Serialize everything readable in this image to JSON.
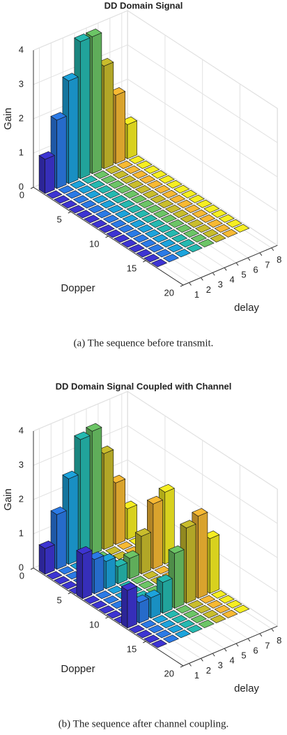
{
  "chart_data": [
    {
      "type": "bar3d",
      "title": "DD Domain Signal",
      "caption": "(a)  The sequence before transmit.",
      "xlabel": "Dopper",
      "ylabel": "delay",
      "zlabel": "Gain",
      "xlim": [
        0,
        20
      ],
      "xticks": [
        0,
        5,
        10,
        15,
        20
      ],
      "ylim": [
        0.5,
        8.5
      ],
      "yticks": [
        1,
        2,
        3,
        4,
        5,
        6,
        7,
        8
      ],
      "zlim": [
        0,
        4
      ],
      "zticks": [
        0,
        1,
        2,
        3,
        4
      ],
      "colors": [
        "#3d34d2",
        "#2b7ae6",
        "#1ca3dc",
        "#25b9b0",
        "#6cc566",
        "#c9bd2c",
        "#f7b933",
        "#f6ee22"
      ],
      "z": [
        [
          1,
          2,
          3,
          4,
          4,
          3,
          2,
          1
        ],
        [
          0,
          0,
          0,
          0,
          0,
          0,
          0,
          0
        ],
        [
          0,
          0,
          0,
          0,
          0,
          0,
          0,
          0
        ],
        [
          0,
          0,
          0,
          0,
          0,
          0,
          0,
          0
        ],
        [
          0,
          0,
          0,
          0,
          0,
          0,
          0,
          0
        ],
        [
          0,
          0,
          0,
          0,
          0,
          0,
          0,
          0
        ],
        [
          0,
          0,
          0,
          0,
          0,
          0,
          0,
          0
        ],
        [
          0,
          0,
          0,
          0,
          0,
          0,
          0,
          0
        ],
        [
          0,
          0,
          0,
          0,
          0,
          0,
          0,
          0
        ],
        [
          0,
          0,
          0,
          0,
          0,
          0,
          0,
          0
        ],
        [
          0,
          0,
          0,
          0,
          0,
          0,
          0,
          0
        ],
        [
          0,
          0,
          0,
          0,
          0,
          0,
          0,
          0
        ],
        [
          0,
          0,
          0,
          0,
          0,
          0,
          0,
          0
        ],
        [
          0,
          0,
          0,
          0,
          0,
          0,
          0,
          0
        ],
        [
          0,
          0,
          0,
          0,
          0,
          0,
          0,
          0
        ],
        [
          0,
          0,
          0,
          0,
          0,
          0,
          0,
          0
        ]
      ]
    },
    {
      "type": "bar3d",
      "title": "DD Domain Signal Coupled with Channel",
      "caption": "(b)  The sequence after channel coupling.",
      "xlabel": "Dopper",
      "ylabel": "delay",
      "zlabel": "Gain",
      "xlim": [
        0,
        20
      ],
      "xticks": [
        0,
        5,
        10,
        15,
        20
      ],
      "ylim": [
        0.5,
        8.5
      ],
      "yticks": [
        1,
        2,
        3,
        4,
        5,
        6,
        7,
        8
      ],
      "zlim": [
        0,
        4
      ],
      "zticks": [
        0,
        1,
        2,
        3,
        4
      ],
      "colors": [
        "#3d34d2",
        "#2b7ae6",
        "#1ca3dc",
        "#25b9b0",
        "#6cc566",
        "#c9bd2c",
        "#f7b933",
        "#f6ee22"
      ],
      "z": [
        [
          0.75,
          1.6,
          2.5,
          3.5,
          3.6,
          2.8,
          1.8,
          0.9
        ],
        [
          0,
          0,
          0,
          0,
          0,
          0,
          0,
          0
        ],
        [
          0,
          0,
          0,
          0,
          0,
          0,
          0,
          0
        ],
        [
          0,
          0,
          0,
          0,
          0,
          0,
          0,
          0
        ],
        [
          0,
          0,
          0,
          0,
          0,
          0,
          0,
          0
        ],
        [
          1.3,
          1.0,
          0.8,
          0.5,
          0.6,
          1.1,
          1.9,
          2.1
        ],
        [
          0,
          0,
          0,
          0,
          0,
          0,
          0,
          0
        ],
        [
          0,
          0,
          0,
          0,
          0,
          0,
          0,
          0
        ],
        [
          0,
          0,
          0,
          0,
          0,
          0,
          0,
          0
        ],
        [
          0,
          0,
          0,
          0,
          0,
          0,
          0,
          0
        ],
        [
          0,
          0,
          0,
          0,
          0,
          0,
          0,
          0
        ],
        [
          1.1,
          0.6,
          0.6,
          0.9,
          1.6,
          2.2,
          2.4,
          1.6
        ],
        [
          0,
          0,
          0,
          0,
          0,
          0,
          0,
          0
        ],
        [
          0,
          0,
          0,
          0,
          0,
          0,
          0,
          0
        ],
        [
          0,
          0,
          0,
          0,
          0,
          0,
          0,
          0
        ],
        [
          0,
          0,
          0,
          0,
          0,
          0,
          0,
          0
        ]
      ]
    }
  ]
}
